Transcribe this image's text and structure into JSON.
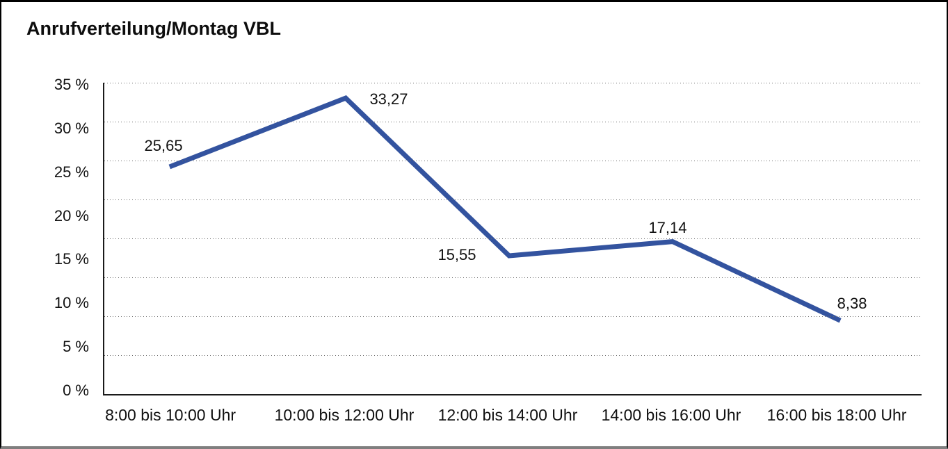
{
  "window": {
    "title": "Anrufverteilung/Montag VBL"
  },
  "chart_data": {
    "type": "line",
    "title": "Anrufverteilung/Montag VBL",
    "categories": [
      "8:00 bis 10:00 Uhr",
      "10:00 bis 12:00 Uhr",
      "12:00 bis 14:00 Uhr",
      "14:00 bis 16:00 Uhr",
      "16:00 bis 18:00 Uhr"
    ],
    "values": [
      25.65,
      33.27,
      15.55,
      17.14,
      8.38
    ],
    "value_labels": [
      "25,65",
      "33,27",
      "15,55",
      "17,14",
      "8,38"
    ],
    "series_name": "Anrufverteilung Montag VBL",
    "y_tick_labels": [
      "35 %",
      "30 %",
      "25 %",
      "20 %",
      "15 %",
      "10 %",
      "5 %",
      "0 %"
    ],
    "ylim": [
      0,
      35
    ],
    "xlabel": "",
    "ylabel": "",
    "legend": "none",
    "grid": "horizontal-dotted",
    "line_color": "#33539F",
    "text_color": "#111111",
    "axis_color": "#1a1a1a"
  }
}
